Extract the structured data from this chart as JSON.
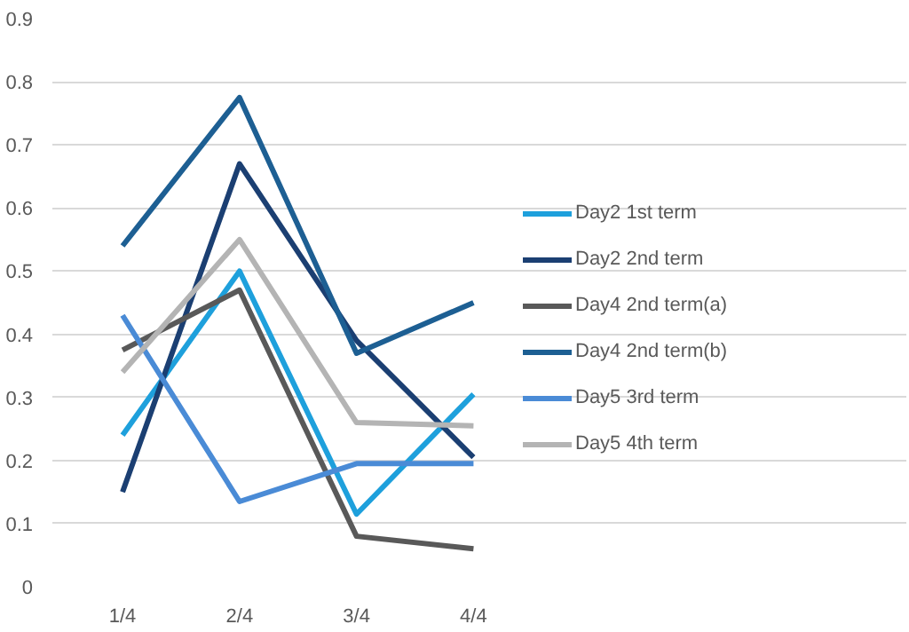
{
  "chart_data": {
    "type": "line",
    "categories": [
      "1/4",
      "2/4",
      "3/4",
      "4/4"
    ],
    "series": [
      {
        "name": "Day2 1st term",
        "color": "#1ea0dc",
        "values": [
          0.24,
          0.5,
          0.115,
          0.305
        ]
      },
      {
        "name": "Day2 2nd term",
        "color": "#1b3f72",
        "values": [
          0.15,
          0.67,
          0.39,
          0.205
        ]
      },
      {
        "name": "Day4 2nd term(a)",
        "color": "#595959",
        "values": [
          0.375,
          0.47,
          0.08,
          0.06
        ]
      },
      {
        "name": "Day4 2nd term(b)",
        "color": "#1d5f93",
        "values": [
          0.54,
          0.775,
          0.37,
          0.45
        ]
      },
      {
        "name": "Day5 3rd term",
        "color": "#4a8bd6",
        "values": [
          0.43,
          0.135,
          0.195,
          0.195
        ]
      },
      {
        "name": "Day5 4th term",
        "color": "#b4b4b4",
        "values": [
          0.34,
          0.55,
          0.26,
          0.255
        ]
      }
    ],
    "ylim": [
      0,
      0.9
    ],
    "yticks": [
      0,
      0.1,
      0.2,
      0.3,
      0.4,
      0.5,
      0.6,
      0.7,
      0.8,
      0.9
    ],
    "grid": "y",
    "legend": "right",
    "marker": "none",
    "line_style": "solid"
  }
}
